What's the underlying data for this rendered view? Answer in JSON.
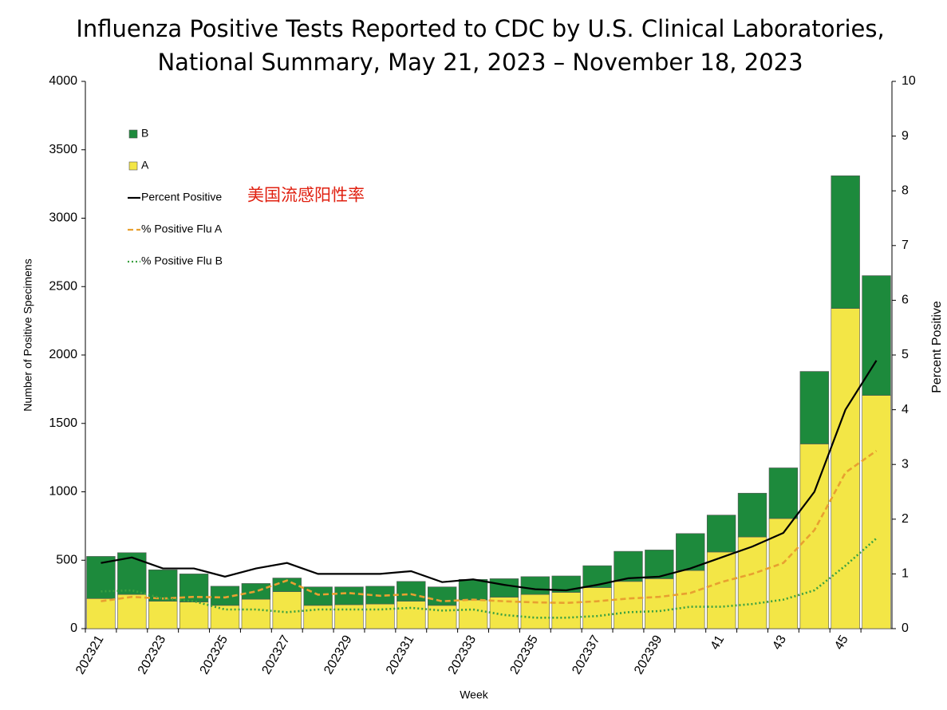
{
  "chart_data": {
    "type": "bar-line",
    "title": [
      "Influenza Positive Tests Reported to CDC by U.S. Clinical Laboratories,",
      "National Summary, May 21, 2023 – November 18, 2023"
    ],
    "x_label": "Week",
    "y_label": "Number of Positive Specimens",
    "y2_label": "Percent Positive",
    "annotation": "美国流感阳性率",
    "annotation_color": "#e02010",
    "categories": [
      "202321",
      null,
      "202323",
      null,
      "202325",
      null,
      "202327",
      null,
      "202329",
      null,
      "202331",
      null,
      "202333",
      null,
      "202335",
      null,
      "202337",
      null,
      "202339",
      null,
      "41",
      null,
      "43",
      null,
      "45",
      null
    ],
    "ylim": [
      0,
      4000
    ],
    "yticks": [
      0,
      500,
      1000,
      1500,
      2000,
      2500,
      3000,
      3500,
      4000
    ],
    "y2lim": [
      0,
      10
    ],
    "y2ticks": [
      0,
      1,
      2,
      3,
      4,
      5,
      6,
      7,
      8,
      9,
      10
    ],
    "series": [
      {
        "name": "B",
        "kind": "bar",
        "color": "#1d8a3c",
        "values": [
          308,
          305,
          230,
          205,
          140,
          115,
          100,
          135,
          130,
          130,
          145,
          135,
          150,
          135,
          130,
          120,
          160,
          220,
          210,
          270,
          270,
          320,
          370,
          530,
          970,
          875
        ]
      },
      {
        "name": "A",
        "kind": "bar",
        "color": "#f3e646",
        "values": [
          220,
          250,
          200,
          195,
          170,
          215,
          270,
          170,
          175,
          180,
          200,
          170,
          210,
          230,
          250,
          265,
          300,
          345,
          365,
          425,
          560,
          670,
          805,
          1350,
          2340,
          1705
        ]
      },
      {
        "name": "Percent Positive",
        "kind": "line",
        "axis": "y2",
        "color": "#000000",
        "dash": "none",
        "values": [
          1.2,
          1.3,
          1.1,
          1.1,
          0.95,
          1.1,
          1.2,
          1.0,
          1.0,
          1.0,
          1.05,
          0.85,
          0.9,
          0.8,
          0.72,
          0.7,
          0.8,
          0.92,
          0.95,
          1.1,
          1.3,
          1.5,
          1.75,
          2.5,
          4.0,
          4.9
        ]
      },
      {
        "name": "% Positive Flu A",
        "kind": "line",
        "axis": "y2",
        "color": "#e8a030",
        "dash": "7 4",
        "values": [
          0.5,
          0.58,
          0.55,
          0.58,
          0.57,
          0.68,
          0.88,
          0.62,
          0.65,
          0.6,
          0.63,
          0.5,
          0.53,
          0.5,
          0.48,
          0.47,
          0.5,
          0.55,
          0.58,
          0.65,
          0.85,
          1.0,
          1.2,
          1.8,
          2.85,
          3.25
        ]
      },
      {
        "name": "% Positive Flu B",
        "kind": "line",
        "axis": "y2",
        "color": "#3aa040",
        "dash": "2 3",
        "values": [
          0.68,
          0.7,
          0.55,
          0.5,
          0.35,
          0.35,
          0.3,
          0.35,
          0.35,
          0.35,
          0.38,
          0.33,
          0.35,
          0.25,
          0.2,
          0.2,
          0.23,
          0.3,
          0.32,
          0.4,
          0.4,
          0.45,
          0.53,
          0.7,
          1.15,
          1.65
        ]
      }
    ]
  }
}
